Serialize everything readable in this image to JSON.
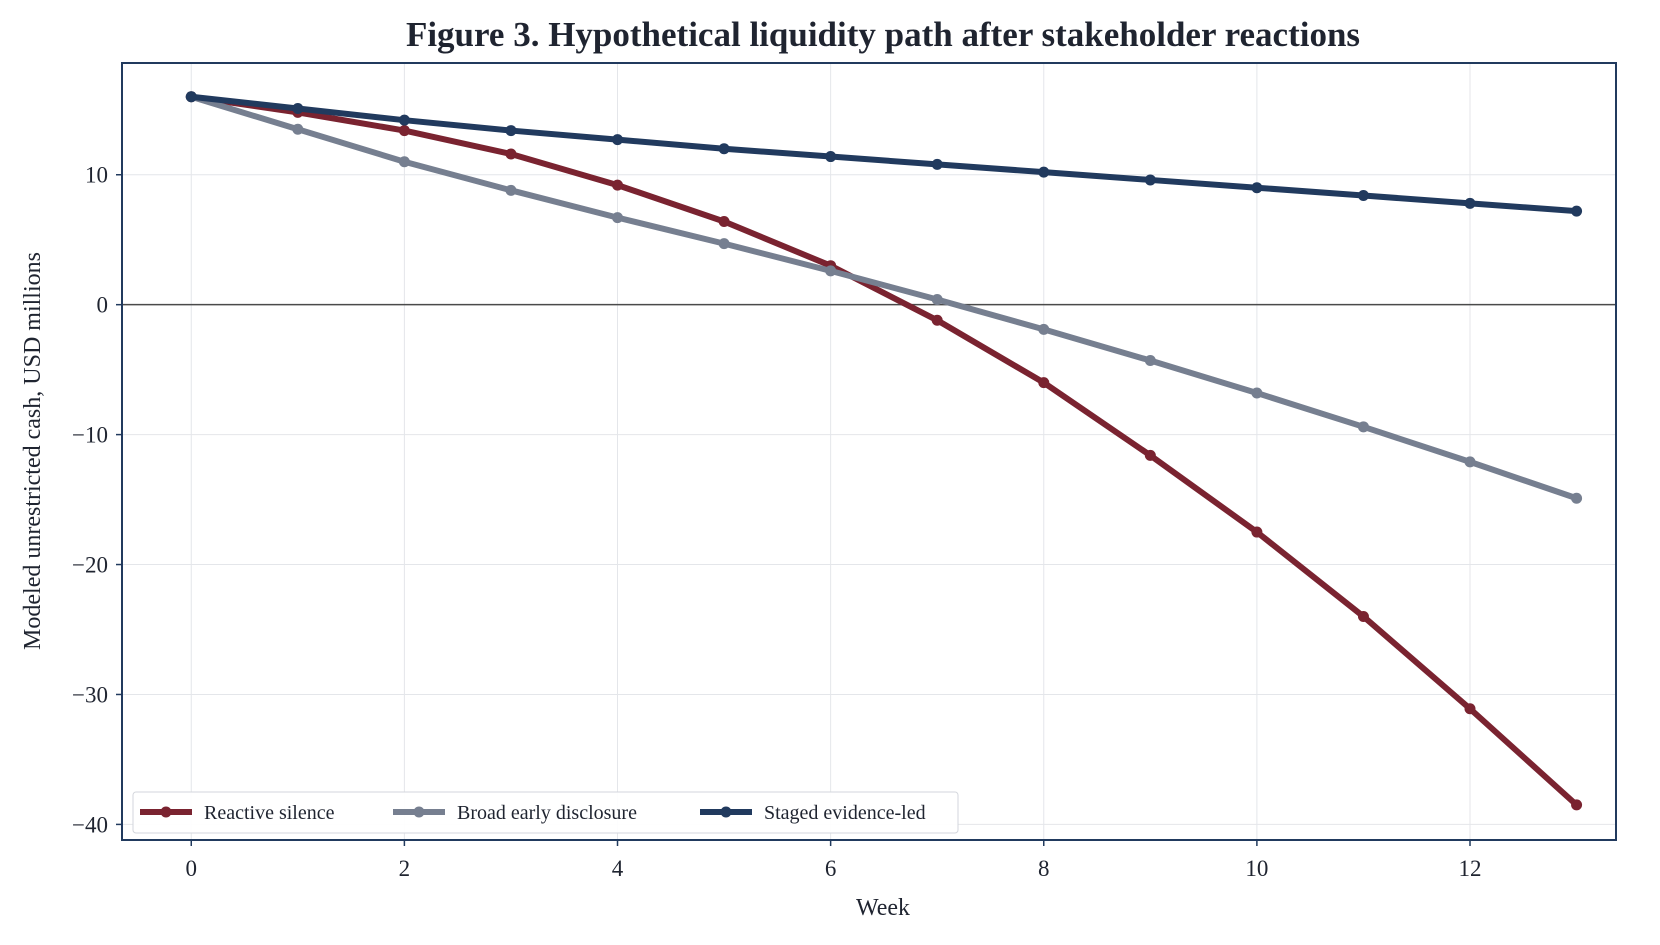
{
  "chart_data": {
    "type": "line",
    "title": "Figure 3. Hypothetical liquidity path after stakeholder reactions",
    "xlabel": "Week",
    "ylabel": "Modeled unrestricted cash, USD millions",
    "xlim": [
      -0.65,
      13.37
    ],
    "ylim": [
      -41.2,
      18.6
    ],
    "x_ticks": [
      0,
      2,
      4,
      6,
      8,
      10,
      12
    ],
    "x_tick_labels": [
      "0",
      "2",
      "4",
      "6",
      "8",
      "10",
      "12"
    ],
    "y_ticks": [
      10,
      0,
      -10,
      -20,
      -30,
      -40
    ],
    "y_tick_labels": [
      "10",
      "0",
      "−10",
      "−20",
      "−30",
      "−40"
    ],
    "grid": true,
    "zero_line": true,
    "legend_position": "lower-left",
    "x": [
      0,
      1,
      2,
      3,
      4,
      5,
      6,
      7,
      8,
      9,
      10,
      11,
      12,
      13
    ],
    "series": [
      {
        "name": "Reactive silence",
        "color": "#7a2330",
        "values": [
          16.0,
          14.8,
          13.4,
          11.6,
          9.2,
          6.4,
          3.0,
          -1.2,
          -6.0,
          -11.6,
          -17.5,
          -24.0,
          -31.1,
          -38.5
        ]
      },
      {
        "name": "Broad early disclosure",
        "color": "#767f90",
        "values": [
          16.0,
          13.5,
          11.0,
          8.8,
          6.7,
          4.7,
          2.6,
          0.4,
          -1.9,
          -4.3,
          -6.8,
          -9.4,
          -12.1,
          -14.9
        ]
      },
      {
        "name": "Staged evidence-led",
        "color": "#213a5e",
        "values": [
          16.0,
          15.1,
          14.2,
          13.4,
          12.7,
          12.0,
          11.4,
          10.8,
          10.2,
          9.6,
          9.0,
          8.4,
          7.8,
          7.2
        ]
      }
    ]
  }
}
